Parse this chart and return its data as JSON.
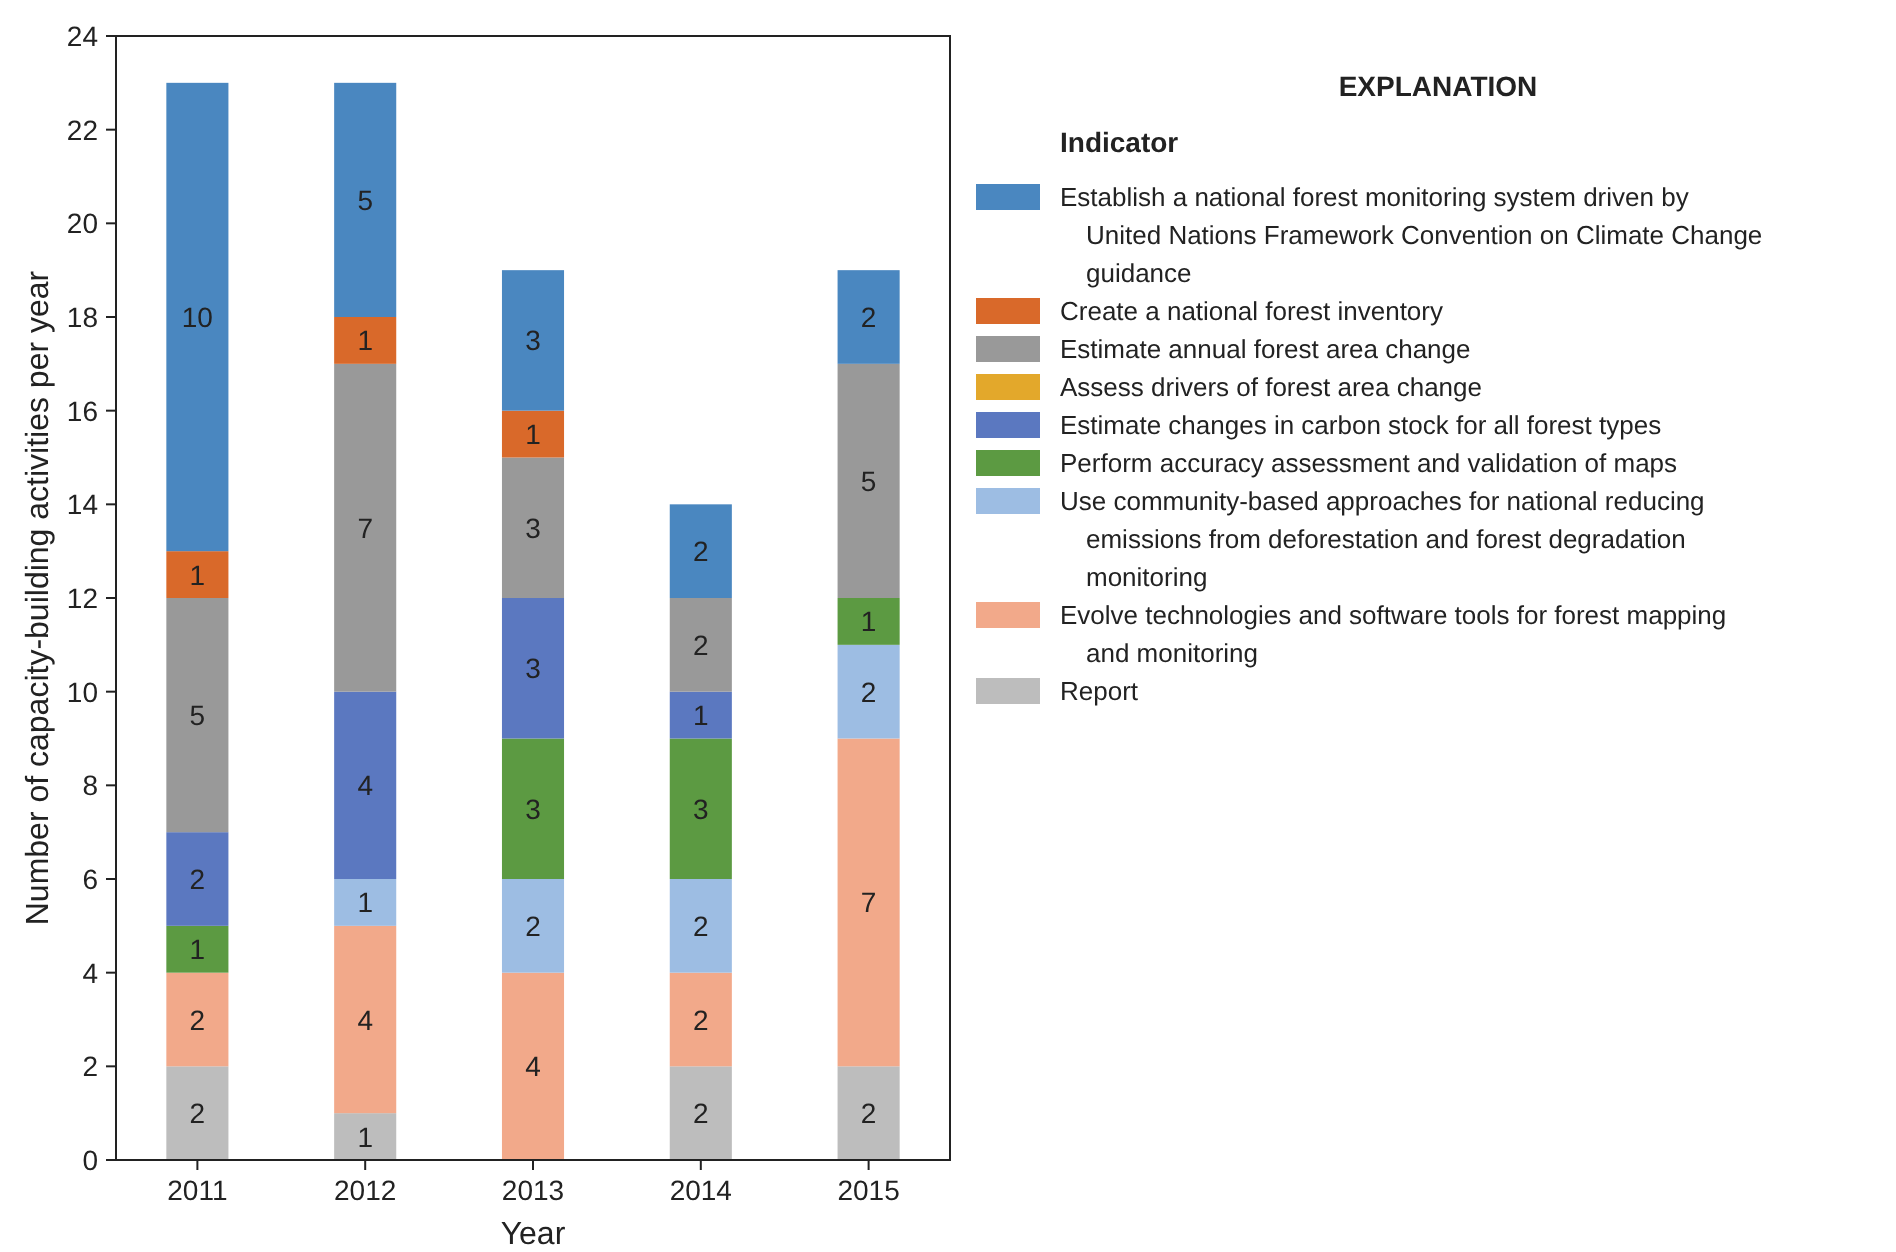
{
  "chart_data": {
    "type": "bar",
    "stacked": true,
    "xlabel": "Year",
    "ylabel": "Number of capacity-building activities per year",
    "categories": [
      "2011",
      "2012",
      "2013",
      "2014",
      "2015"
    ],
    "ylim": [
      0,
      24
    ],
    "yticks": [
      0,
      2,
      4,
      6,
      8,
      10,
      12,
      14,
      16,
      18,
      20,
      22,
      24
    ],
    "legend": "right",
    "legend_title": "Indicator",
    "annotations": [
      "EXPLANATION"
    ],
    "series": [
      {
        "name": "Report",
        "color": "#bdbdbd",
        "values": [
          2,
          1,
          0,
          2,
          2
        ],
        "value_labels": [
          "2",
          "1",
          null,
          "2",
          "2"
        ]
      },
      {
        "name": "Evolve technologies and software tools for forest mapping and monitoring",
        "color": "#f2a98a",
        "values": [
          2,
          4,
          4,
          2,
          7
        ],
        "value_labels": [
          "2",
          "4",
          "4",
          "2",
          "7"
        ]
      },
      {
        "name": "Use community-based approaches for national reducing emissions from deforestation and forest degradation monitoring",
        "color": "#9dbde3",
        "values": [
          0,
          1,
          2,
          2,
          2
        ],
        "value_labels": [
          null,
          "1",
          "2",
          "2",
          "2"
        ]
      },
      {
        "name": "Perform accuracy assessment and validation of maps",
        "color": "#5c9a42",
        "values": [
          1,
          0,
          3,
          3,
          1
        ],
        "value_labels": [
          "1",
          null,
          "3",
          "3",
          "1"
        ]
      },
      {
        "name": "Estimate changes in carbon stock for all forest types",
        "color": "#5b78c0",
        "values": [
          2,
          4,
          3,
          1,
          0
        ],
        "value_labels": [
          "2",
          "4",
          "3",
          "1",
          null
        ]
      },
      {
        "name": "Assess drivers of forest area change",
        "color": "#e3a82b",
        "values": [
          0,
          0,
          0,
          0,
          0
        ],
        "value_labels": [
          null,
          null,
          null,
          null,
          null
        ]
      },
      {
        "name": "Estimate annual forest area change",
        "color": "#999999",
        "values": [
          5,
          7,
          3,
          2,
          5
        ],
        "value_labels": [
          "5",
          "7",
          "3",
          "2",
          "5"
        ]
      },
      {
        "name": "Create a national forest inventory",
        "color": "#d9692a",
        "values": [
          1,
          1,
          1,
          0,
          0
        ],
        "value_labels": [
          "1",
          "1",
          "1",
          null,
          null
        ]
      },
      {
        "name": "Establish a national forest monitoring system driven by United Nations Framework Convention on Climate Change guidance",
        "color": "#4a87c0",
        "values": [
          10,
          5,
          3,
          2,
          2
        ],
        "value_labels": [
          "10",
          "5",
          "3",
          "2",
          "2"
        ]
      }
    ]
  }
}
